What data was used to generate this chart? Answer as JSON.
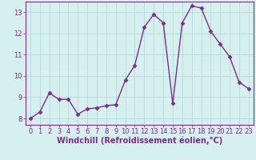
{
  "x": [
    0,
    1,
    2,
    3,
    4,
    5,
    6,
    7,
    8,
    9,
    10,
    11,
    12,
    13,
    14,
    15,
    16,
    17,
    18,
    19,
    20,
    21,
    22,
    23
  ],
  "y": [
    8.0,
    8.3,
    9.2,
    8.9,
    8.9,
    8.2,
    8.45,
    8.5,
    8.6,
    8.65,
    9.8,
    10.5,
    12.3,
    12.9,
    12.5,
    8.7,
    12.5,
    13.3,
    13.2,
    12.1,
    11.5,
    10.9,
    9.7,
    9.4
  ],
  "line_color": "#7b2d8b",
  "marker": "D",
  "marker_size": 2.5,
  "bg_color": "#d6f0f0",
  "grid_color": "#aed4d4",
  "xlabel": "Windchill (Refroidissement éolien,°C)",
  "xlim": [
    -0.5,
    23.5
  ],
  "ylim": [
    7.7,
    13.5
  ],
  "yticks": [
    8,
    9,
    10,
    11,
    12,
    13
  ],
  "xticks": [
    0,
    1,
    2,
    3,
    4,
    5,
    6,
    7,
    8,
    9,
    10,
    11,
    12,
    13,
    14,
    15,
    16,
    17,
    18,
    19,
    20,
    21,
    22,
    23
  ],
  "tick_color": "#7b2d8b",
  "spine_color": "#7b2d8b",
  "xlabel_fontsize": 7.0,
  "tick_fontsize": 6.0,
  "linewidth": 1.0
}
